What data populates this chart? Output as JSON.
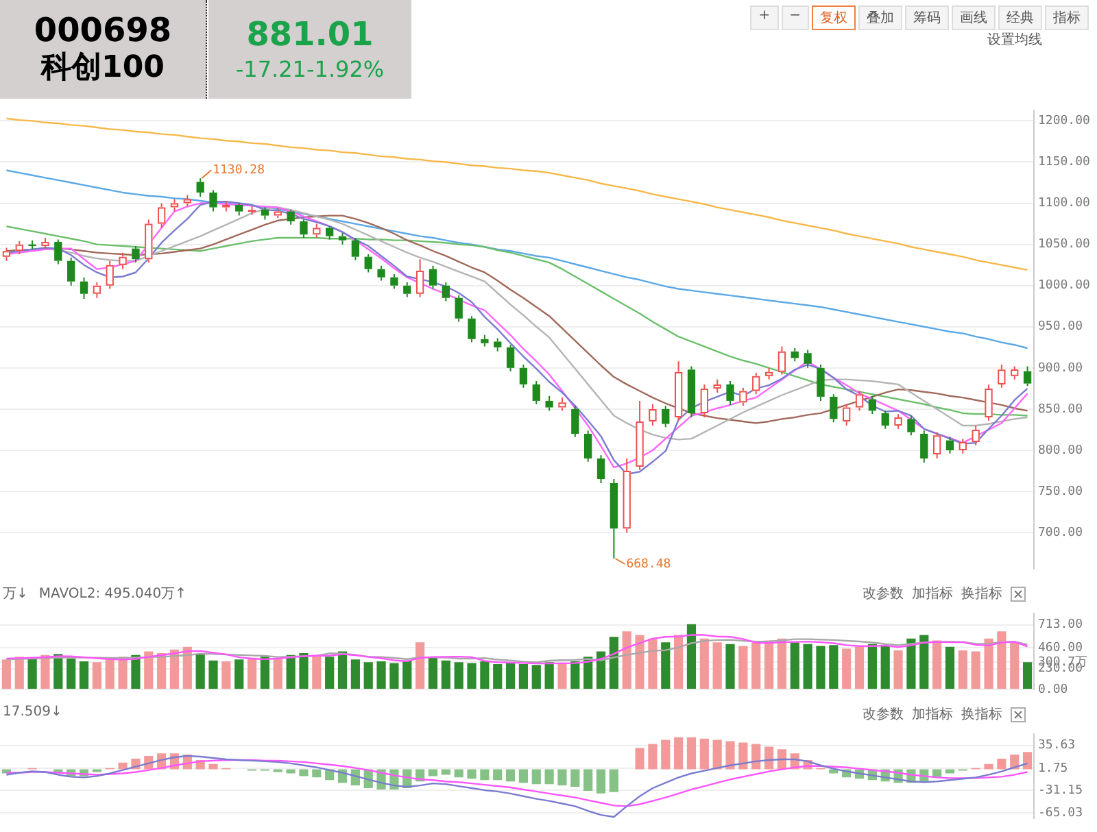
{
  "chart_data": [
    {
      "type": "candlestick",
      "title": "000698",
      "subtitle": "科创100",
      "categories": [
        null,
        null,
        null,
        null,
        null,
        null,
        null,
        null,
        null,
        null,
        null,
        null,
        null,
        null,
        null,
        null,
        null,
        null,
        null,
        null,
        null,
        null,
        null,
        null,
        null,
        null,
        null,
        null,
        null,
        null,
        null,
        null,
        null,
        null,
        null,
        null,
        null,
        null,
        null,
        null,
        null,
        null,
        null,
        null,
        null,
        null,
        null,
        null,
        null,
        null,
        null,
        null,
        null,
        null,
        null,
        null,
        null,
        null,
        null,
        null,
        null,
        null,
        null,
        null,
        null,
        null,
        null,
        null,
        null,
        null,
        null,
        null,
        null,
        null,
        null,
        null,
        null,
        null,
        null,
        null
      ],
      "ohlc": [
        [
          1035,
          1046,
          1030,
          1042
        ],
        [
          1042,
          1054,
          1038,
          1050
        ],
        [
          1050,
          1055,
          1044,
          1048
        ],
        [
          1048,
          1058,
          1045,
          1053
        ],
        [
          1053,
          1056,
          1026,
          1030
        ],
        [
          1030,
          1034,
          1000,
          1005
        ],
        [
          1005,
          1010,
          984,
          990
        ],
        [
          990,
          1004,
          985,
          1000
        ],
        [
          1000,
          1030,
          996,
          1025
        ],
        [
          1025,
          1040,
          1020,
          1035
        ],
        [
          1045,
          1048,
          1028,
          1032
        ],
        [
          1032,
          1080,
          1028,
          1075
        ],
        [
          1075,
          1100,
          1070,
          1095
        ],
        [
          1095,
          1105,
          1090,
          1100
        ],
        [
          1100,
          1110,
          1096,
          1105
        ],
        [
          1126,
          1130.28,
          1108,
          1113
        ],
        [
          1113,
          1116,
          1090,
          1095
        ],
        [
          1095,
          1102,
          1090,
          1098
        ],
        [
          1098,
          1100,
          1085,
          1090
        ],
        [
          1090,
          1096,
          1086,
          1092
        ],
        [
          1092,
          1095,
          1080,
          1085
        ],
        [
          1085,
          1094,
          1082,
          1090
        ],
        [
          1090,
          1092,
          1074,
          1078
        ],
        [
          1078,
          1080,
          1058,
          1062
        ],
        [
          1062,
          1075,
          1058,
          1070
        ],
        [
          1070,
          1072,
          1056,
          1060
        ],
        [
          1060,
          1064,
          1050,
          1055
        ],
        [
          1055,
          1058,
          1031,
          1035
        ],
        [
          1035,
          1038,
          1016,
          1020
        ],
        [
          1020,
          1024,
          1006,
          1010
        ],
        [
          1010,
          1014,
          996,
          1000
        ],
        [
          1000,
          1004,
          986,
          990
        ],
        [
          990,
          1032,
          986,
          1018
        ],
        [
          1020,
          1024,
          996,
          1000
        ],
        [
          1000,
          1004,
          981,
          985
        ],
        [
          985,
          988,
          956,
          960
        ],
        [
          960,
          963,
          931,
          935
        ],
        [
          935,
          940,
          926,
          930
        ],
        [
          932,
          936,
          920,
          925
        ],
        [
          925,
          928,
          896,
          900
        ],
        [
          900,
          904,
          876,
          880
        ],
        [
          880,
          884,
          856,
          860
        ],
        [
          860,
          866,
          848,
          852
        ],
        [
          852,
          864,
          848,
          858
        ],
        [
          850,
          854,
          816,
          820
        ],
        [
          820,
          824,
          786,
          790
        ],
        [
          790,
          794,
          760,
          765
        ],
        [
          760,
          765,
          668.48,
          705
        ],
        [
          705,
          790,
          700,
          775
        ],
        [
          780,
          860,
          776,
          835
        ],
        [
          835,
          856,
          830,
          850
        ],
        [
          850,
          854,
          828,
          832
        ],
        [
          840,
          908,
          836,
          895
        ],
        [
          898,
          902,
          840,
          845
        ],
        [
          845,
          880,
          840,
          875
        ],
        [
          875,
          886,
          870,
          880
        ],
        [
          880,
          884,
          855,
          860
        ],
        [
          858,
          876,
          854,
          872
        ],
        [
          872,
          894,
          868,
          890
        ],
        [
          890,
          900,
          886,
          895
        ],
        [
          895,
          926,
          892,
          920
        ],
        [
          920,
          924,
          908,
          912
        ],
        [
          918,
          922,
          900,
          905
        ],
        [
          900,
          904,
          860,
          865
        ],
        [
          865,
          868,
          834,
          838
        ],
        [
          835,
          856,
          830,
          852
        ],
        [
          852,
          872,
          848,
          868
        ],
        [
          862,
          866,
          844,
          848
        ],
        [
          845,
          848,
          826,
          830
        ],
        [
          830,
          844,
          826,
          840
        ],
        [
          838,
          842,
          818,
          822
        ],
        [
          820,
          824,
          785,
          790
        ],
        [
          795,
          822,
          790,
          818
        ],
        [
          812,
          816,
          796,
          800
        ],
        [
          800,
          814,
          796,
          810
        ],
        [
          810,
          830,
          806,
          825
        ],
        [
          840,
          880,
          836,
          875
        ],
        [
          880,
          904,
          876,
          898
        ],
        [
          890,
          902,
          886,
          898.22
        ],
        [
          896,
          902,
          878,
          881.01
        ]
      ],
      "series": [
        {
          "type": "line",
          "color": "#7b7bd0",
          "values": [
            1040,
            1042,
            1044,
            1046,
            1045,
            1037,
            1025,
            1016,
            1010,
            1011,
            1016,
            1033,
            1052,
            1067,
            1081,
            1098,
            1102,
            1102,
            1100,
            1098,
            1092,
            1091,
            1087,
            1081,
            1077,
            1072,
            1065,
            1056,
            1048,
            1036,
            1024,
            1011,
            1008,
            1004,
            999,
            991,
            980,
            962,
            947,
            930,
            914,
            899,
            883,
            870,
            854,
            836,
            817,
            788,
            771,
            774,
            786,
            799,
            837,
            851,
            859,
            865,
            871,
            866,
            875,
            879,
            887,
            898,
            904,
            899,
            888,
            874,
            866,
            854,
            847,
            848,
            842,
            826,
            820,
            814,
            808,
            809,
            826,
            842,
            861,
            875
          ]
        },
        {
          "type": "line",
          "color": "#ff66ff",
          "values": [
            1038,
            1040,
            1042,
            1044,
            1045,
            1045,
            1032,
            1020,
            1022,
            1026,
            1030,
            1050,
            1070,
            1090,
            1096,
            1100,
            1100,
            1099,
            1098,
            1097,
            1096,
            1095,
            1090,
            1084,
            1078,
            1072,
            1065,
            1055,
            1044,
            1033,
            1021,
            1010,
            1003,
            996,
            990,
            983,
            976,
            970,
            955,
            940,
            923,
            908,
            892,
            872,
            851,
            830,
            805,
            779,
            784,
            791,
            800,
            814,
            828,
            842,
            846,
            851,
            855,
            860,
            864,
            875,
            886,
            897,
            908,
            898,
            888,
            879,
            869,
            862,
            855,
            848,
            837,
            826,
            820,
            815,
            809,
            817,
            825,
            833,
            851,
            869
          ]
        },
        {
          "type": "line",
          "color": "#b4b4b4",
          "values": [
            1040,
            1042,
            1044,
            1045,
            1043,
            1040,
            1036,
            1033,
            1031,
            1030,
            1030,
            1036,
            1042,
            1048,
            1054,
            1060,
            1067,
            1074,
            1081,
            1088,
            1093,
            1095,
            1092,
            1088,
            1084,
            1080,
            1075,
            1068,
            1061,
            1054,
            1047,
            1040,
            1034,
            1029,
            1023,
            1017,
            1011,
            1005,
            991,
            977,
            964,
            950,
            937,
            918,
            899,
            880,
            861,
            842,
            833,
            825,
            819,
            815,
            813,
            814,
            822,
            830,
            838,
            846,
            853,
            860,
            867,
            873,
            879,
            885,
            886,
            886,
            885,
            884,
            882,
            880,
            870,
            860,
            850,
            840,
            830,
            830,
            832,
            835,
            838,
            840
          ]
        },
        {
          "type": "line",
          "color": "#a0695a",
          "values": [
            1042,
            1043,
            1044,
            1045,
            1045,
            1044,
            1042,
            1040,
            1039,
            1038,
            1037,
            1038,
            1039,
            1041,
            1043,
            1045,
            1050,
            1056,
            1062,
            1068,
            1074,
            1079,
            1081,
            1083,
            1084,
            1085,
            1085,
            1081,
            1076,
            1070,
            1063,
            1055,
            1049,
            1042,
            1036,
            1029,
            1022,
            1016,
            1006,
            995,
            985,
            974,
            963,
            948,
            933,
            918,
            903,
            889,
            880,
            872,
            864,
            857,
            851,
            845,
            842,
            839,
            837,
            835,
            833,
            835,
            838,
            840,
            843,
            845,
            850,
            855,
            860,
            865,
            870,
            874,
            873,
            871,
            869,
            866,
            864,
            861,
            858,
            855,
            851,
            848
          ]
        },
        {
          "type": "line",
          "color": "#6cbf6c",
          "values": [
            1072,
            1069,
            1066,
            1063,
            1060,
            1057,
            1054,
            1050,
            1049,
            1048,
            1047,
            1046,
            1045,
            1044,
            1043,
            1042,
            1045,
            1048,
            1051,
            1054,
            1056,
            1058,
            1058,
            1058,
            1058,
            1057,
            1057,
            1057,
            1056,
            1056,
            1055,
            1055,
            1054,
            1053,
            1052,
            1050,
            1049,
            1047,
            1043,
            1040,
            1036,
            1032,
            1028,
            1020,
            1011,
            1002,
            993,
            984,
            975,
            966,
            956,
            947,
            938,
            932,
            926,
            920,
            914,
            909,
            905,
            900,
            895,
            890,
            885,
            880,
            877,
            874,
            871,
            868,
            865,
            862,
            859,
            856,
            852,
            849,
            845,
            844,
            844,
            843,
            843,
            842
          ]
        },
        {
          "type": "line",
          "color": "#5aa8e6",
          "values": [
            1140,
            1137,
            1134,
            1131,
            1128,
            1125,
            1122,
            1119,
            1116,
            1113,
            1111,
            1109,
            1108,
            1106,
            1105,
            1103,
            1101,
            1100,
            1098,
            1097,
            1095,
            1093,
            1090,
            1087,
            1084,
            1081,
            1078,
            1075,
            1072,
            1069,
            1066,
            1063,
            1060,
            1058,
            1055,
            1052,
            1050,
            1047,
            1044,
            1042,
            1039,
            1036,
            1034,
            1030,
            1026,
            1022,
            1018,
            1014,
            1010,
            1007,
            1003,
            999,
            996,
            994,
            992,
            990,
            988,
            986,
            984,
            982,
            980,
            978,
            976,
            974,
            971,
            968,
            965,
            962,
            959,
            956,
            953,
            950,
            947,
            944,
            942,
            938,
            935,
            931,
            928,
            924
          ]
        },
        {
          "type": "line",
          "color": "#f7b84a",
          "values": [
            1203,
            1201,
            1200,
            1198,
            1197,
            1195,
            1194,
            1192,
            1190,
            1189,
            1187,
            1186,
            1184,
            1183,
            1181,
            1179,
            1178,
            1176,
            1175,
            1173,
            1172,
            1170,
            1168,
            1167,
            1165,
            1164,
            1162,
            1161,
            1159,
            1157,
            1156,
            1154,
            1153,
            1151,
            1150,
            1148,
            1146,
            1145,
            1143,
            1142,
            1140,
            1139,
            1137,
            1134,
            1131,
            1128,
            1124,
            1121,
            1118,
            1115,
            1111,
            1108,
            1105,
            1102,
            1099,
            1095,
            1092,
            1089,
            1086,
            1083,
            1079,
            1076,
            1073,
            1070,
            1067,
            1063,
            1060,
            1057,
            1054,
            1051,
            1047,
            1044,
            1041,
            1038,
            1035,
            1031,
            1028,
            1025,
            1022,
            1019
          ]
        }
      ],
      "ylim": [
        656,
        1213
      ],
      "yticks": [
        {
          "value": 700,
          "label": "700.00"
        },
        {
          "value": 750,
          "label": "750.00"
        },
        {
          "value": 800,
          "label": "800.00"
        },
        {
          "value": 850,
          "label": "850.00"
        },
        {
          "value": 900,
          "label": "900.00"
        },
        {
          "value": 950,
          "label": "950.00"
        },
        {
          "value": 1000,
          "label": "1000.00"
        },
        {
          "value": 1050,
          "label": "1050.00"
        },
        {
          "value": 1100,
          "label": "1100.00"
        },
        {
          "value": 1150,
          "label": "1150.00"
        },
        {
          "value": 1200,
          "label": "1200.00"
        }
      ],
      "grid": "y",
      "tick_labels": "y",
      "marker": "none",
      "annotations": [
        "881.01",
        "-17.21-1.92%",
        "+",
        "−",
        "复权",
        "叠加",
        "筹码",
        "画线",
        "经典",
        "指标",
        "设置均线",
        "1130.28",
        "668.48"
      ]
    },
    {
      "type": "bar",
      "categories": [
        null,
        null,
        null,
        null,
        null,
        null,
        null,
        null,
        null,
        null,
        null,
        null,
        null,
        null,
        null,
        null,
        null,
        null,
        null,
        null,
        null,
        null,
        null,
        null,
        null,
        null,
        null,
        null,
        null,
        null,
        null,
        null,
        null,
        null,
        null,
        null,
        null,
        null,
        null,
        null,
        null,
        null,
        null,
        null,
        null,
        null,
        null,
        null,
        null,
        null,
        null,
        null,
        null,
        null,
        null,
        null,
        null,
        null,
        null,
        null,
        null,
        null,
        null,
        null,
        null,
        null,
        null,
        null,
        null,
        null,
        null,
        null,
        null,
        null,
        null,
        null,
        null,
        null,
        null,
        null
      ],
      "series": [
        {
          "type": "bar",
          "values": [
            330,
            360,
            350,
            380,
            390,
            340,
            310,
            300,
            330,
            360,
            380,
            420,
            400,
            440,
            470,
            390,
            320,
            310,
            330,
            350,
            360,
            340,
            380,
            400,
            380,
            360,
            420,
            330,
            300,
            310,
            290,
            320,
            520,
            350,
            320,
            300,
            290,
            310,
            280,
            300,
            280,
            270,
            300,
            290,
            310,
            360,
            420,
            580,
            640,
            600,
            560,
            520,
            600,
            720,
            560,
            520,
            500,
            480,
            520,
            540,
            560,
            520,
            500,
            480,
            490,
            450,
            470,
            500,
            480,
            430,
            560,
            600,
            540,
            470,
            430,
            420,
            560,
            640,
            520,
            300.7
          ],
          "colors": [
            "#f29a9a",
            "#f29a9a",
            "#2e8b2e",
            "#f29a9a",
            "#2e8b2e",
            "#2e8b2e",
            "#2e8b2e",
            "#f29a9a",
            "#f29a9a",
            "#f29a9a",
            "#2e8b2e",
            "#f29a9a",
            "#f29a9a",
            "#f29a9a",
            "#f29a9a",
            "#2e8b2e",
            "#2e8b2e",
            "#f29a9a",
            "#2e8b2e",
            "#f29a9a",
            "#2e8b2e",
            "#f29a9a",
            "#2e8b2e",
            "#2e8b2e",
            "#f29a9a",
            "#2e8b2e",
            "#2e8b2e",
            "#2e8b2e",
            "#2e8b2e",
            "#2e8b2e",
            "#2e8b2e",
            "#2e8b2e",
            "#f29a9a",
            "#2e8b2e",
            "#2e8b2e",
            "#2e8b2e",
            "#2e8b2e",
            "#2e8b2e",
            "#2e8b2e",
            "#2e8b2e",
            "#2e8b2e",
            "#2e8b2e",
            "#2e8b2e",
            "#f29a9a",
            "#2e8b2e",
            "#2e8b2e",
            "#2e8b2e",
            "#2e8b2e",
            "#f29a9a",
            "#f29a9a",
            "#f29a9a",
            "#2e8b2e",
            "#f29a9a",
            "#2e8b2e",
            "#f29a9a",
            "#f29a9a",
            "#2e8b2e",
            "#f29a9a",
            "#f29a9a",
            "#f29a9a",
            "#f29a9a",
            "#2e8b2e",
            "#2e8b2e",
            "#2e8b2e",
            "#2e8b2e",
            "#f29a9a",
            "#f29a9a",
            "#2e8b2e",
            "#2e8b2e",
            "#f29a9a",
            "#2e8b2e",
            "#2e8b2e",
            "#f29a9a",
            "#2e8b2e",
            "#f29a9a",
            "#f29a9a",
            "#f29a9a",
            "#f29a9a",
            "#f29a9a",
            "#2e8b2e"
          ]
        },
        {
          "type": "line",
          "color": "#ff55ff",
          "values": [
            340,
            345,
            350,
            355,
            366,
            364,
            354,
            344,
            334,
            328,
            336,
            360,
            378,
            398,
            422,
            424,
            404,
            386,
            354,
            340,
            332,
            342,
            352,
            366,
            372,
            372,
            388,
            378,
            358,
            344,
            322,
            310,
            348,
            358,
            360,
            362,
            356,
            314,
            300,
            296,
            292,
            286,
            286,
            288,
            290,
            306,
            336,
            392,
            462,
            510,
            560,
            580,
            584,
            600,
            600,
            584,
            580,
            556,
            516,
            512,
            520,
            524,
            528,
            520,
            510,
            488,
            478,
            478,
            484,
            466,
            486,
            516,
            524,
            520,
            520,
            492,
            484,
            518,
            526,
            474
          ]
        },
        {
          "type": "line",
          "color": "#a8a8a8",
          "values": [
            330,
            335,
            340,
            345,
            350,
            352,
            350,
            349,
            348,
            347,
            352,
            356,
            360,
            368,
            378,
            394,
            392,
            385,
            380,
            375,
            370,
            358,
            362,
            366,
            372,
            398,
            396,
            382,
            362,
            357,
            347,
            334,
            354,
            354,
            350,
            340,
            340,
            346,
            329,
            320,
            307,
            298,
            317,
            323,
            325,
            336,
            321,
            353,
            381,
            403,
            426,
            433,
            463,
            510,
            535,
            545,
            547,
            536,
            527,
            529,
            540,
            554,
            554,
            550,
            545,
            536,
            529,
            517,
            500,
            488,
            503,
            517,
            526,
            525,
            524,
            502,
            503,
            522,
            525,
            495
          ]
        }
      ],
      "ylim": [
        0,
        840
      ],
      "yticks": [
        {
          "value": 0,
          "label": "0.00"
        },
        {
          "value": 230,
          "label": "230.00"
        },
        {
          "value": 300.7,
          "label": "300.7万"
        },
        {
          "value": 460,
          "label": "460.00"
        },
        {
          "value": 713,
          "label": "713.00"
        }
      ],
      "grid": "y",
      "tick_labels": "y",
      "marker": "none",
      "annotations": [
        "万↓",
        "MAVOL2: 495.040万↑",
        "改参数",
        "加指标",
        "换指标"
      ]
    },
    {
      "type": "bar",
      "categories": [
        null,
        null,
        null,
        null,
        null,
        null,
        null,
        null,
        null,
        null,
        null,
        null,
        null,
        null,
        null,
        null,
        null,
        null,
        null,
        null,
        null,
        null,
        null,
        null,
        null,
        null,
        null,
        null,
        null,
        null,
        null,
        null,
        null,
        null,
        null,
        null,
        null,
        null,
        null,
        null,
        null,
        null,
        null,
        null,
        null,
        null,
        null,
        null,
        null,
        null,
        null,
        null,
        null,
        null,
        null,
        null,
        null,
        null,
        null,
        null,
        null,
        null,
        null,
        null,
        null,
        null,
        null,
        null,
        null,
        null,
        null,
        null,
        null,
        null,
        null,
        null,
        null,
        null,
        null,
        null
      ],
      "series": [
        {
          "type": "bar",
          "values": [
            -6,
            0,
            2,
            0,
            -6,
            -10,
            -10,
            -4,
            2,
            10,
            16,
            20,
            24,
            24,
            22,
            14,
            8,
            2,
            0,
            -2,
            -2,
            -4,
            -6,
            -10,
            -12,
            -16,
            -20,
            -24,
            -28,
            -30,
            -30,
            -28,
            -18,
            -10,
            -8,
            -12,
            -14,
            -16,
            -16,
            -18,
            -20,
            -22,
            -22,
            -24,
            -26,
            -32,
            -36,
            -34,
            0,
            32,
            38,
            44,
            48,
            48,
            46,
            44,
            42,
            40,
            38,
            34,
            30,
            24,
            14,
            2,
            -6,
            -12,
            -14,
            -16,
            -18,
            -20,
            -20,
            -18,
            -12,
            -6,
            -2,
            2,
            8,
            16,
            22,
            26
          ],
          "colors": [
            "#86c286",
            "#f29a9a",
            "#f29a9a",
            "#f29a9a",
            "#86c286",
            "#86c286",
            "#86c286",
            "#86c286",
            "#f29a9a",
            "#f29a9a",
            "#f29a9a",
            "#f29a9a",
            "#f29a9a",
            "#f29a9a",
            "#f29a9a",
            "#f29a9a",
            "#f29a9a",
            "#f29a9a",
            "#f29a9a",
            "#86c286",
            "#86c286",
            "#86c286",
            "#86c286",
            "#86c286",
            "#86c286",
            "#86c286",
            "#86c286",
            "#86c286",
            "#86c286",
            "#86c286",
            "#86c286",
            "#86c286",
            "#86c286",
            "#86c286",
            "#86c286",
            "#86c286",
            "#86c286",
            "#86c286",
            "#86c286",
            "#86c286",
            "#86c286",
            "#86c286",
            "#86c286",
            "#86c286",
            "#86c286",
            "#86c286",
            "#86c286",
            "#86c286",
            "#f29a9a",
            "#f29a9a",
            "#f29a9a",
            "#f29a9a",
            "#f29a9a",
            "#f29a9a",
            "#f29a9a",
            "#f29a9a",
            "#f29a9a",
            "#f29a9a",
            "#f29a9a",
            "#f29a9a",
            "#f29a9a",
            "#f29a9a",
            "#f29a9a",
            "#f29a9a",
            "#86c286",
            "#86c286",
            "#86c286",
            "#86c286",
            "#86c286",
            "#86c286",
            "#86c286",
            "#86c286",
            "#86c286",
            "#86c286",
            "#86c286",
            "#f29a9a",
            "#f29a9a",
            "#f29a9a",
            "#f29a9a",
            "#f29a9a"
          ]
        },
        {
          "type": "line",
          "color": "#7b7bd0",
          "values": [
            -8,
            -5,
            -3,
            -4,
            -8,
            -11,
            -12,
            -10,
            -6,
            -1,
            4,
            9,
            14,
            18,
            20,
            19,
            17,
            15,
            14,
            13,
            12,
            11,
            9,
            6,
            3,
            -1,
            -5,
            -10,
            -15,
            -20,
            -24,
            -26,
            -24,
            -21,
            -22,
            -25,
            -28,
            -31,
            -33,
            -36,
            -40,
            -44,
            -47,
            -51,
            -55,
            -62,
            -68,
            -71,
            -55,
            -40,
            -28,
            -20,
            -12,
            -6,
            -2,
            2,
            6,
            9,
            12,
            14,
            15,
            15,
            12,
            6,
            1,
            -3,
            -6,
            -9,
            -12,
            -15,
            -18,
            -19,
            -18,
            -16,
            -14,
            -12,
            -8,
            -3,
            3,
            9
          ]
        },
        {
          "type": "line",
          "color": "#ff55ff",
          "values": [
            -5,
            -5,
            -4,
            -4,
            -5,
            -6,
            -7,
            -8,
            -7,
            -6,
            -4,
            -1,
            2,
            6,
            9,
            12,
            13,
            14,
            14,
            14,
            13,
            13,
            12,
            11,
            9,
            7,
            5,
            2,
            -1,
            -5,
            -9,
            -12,
            -15,
            -16,
            -18,
            -19,
            -21,
            -23,
            -25,
            -27,
            -30,
            -33,
            -36,
            -39,
            -42,
            -46,
            -50,
            -54,
            -55,
            -52,
            -47,
            -42,
            -36,
            -30,
            -25,
            -20,
            -15,
            -11,
            -7,
            -3,
            0,
            3,
            5,
            5,
            4,
            3,
            1,
            -1,
            -3,
            -5,
            -8,
            -10,
            -12,
            -13,
            -13,
            -13,
            -12,
            -11,
            -8,
            -4
          ]
        }
      ],
      "ylim": [
        -73,
        53
      ],
      "yticks": [
        {
          "value": -65.03,
          "label": "-65.03"
        },
        {
          "value": -31.15,
          "label": "-31.15"
        },
        {
          "value": 1.75,
          "label": "1.75"
        },
        {
          "value": 35.63,
          "label": "35.63"
        }
      ],
      "grid": "y",
      "tick_labels": "y",
      "marker": "none",
      "annotations": [
        "17.509↓",
        "改参数",
        "加指标",
        "换指标"
      ]
    }
  ]
}
